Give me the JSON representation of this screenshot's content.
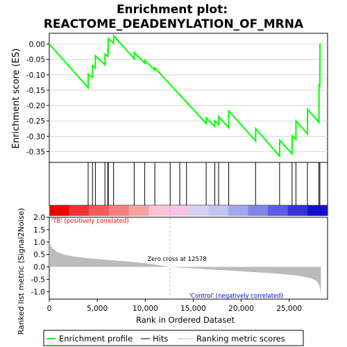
{
  "title_line1": "Enrichment plot:",
  "title_line2": "REACTOME_DEADENYLATION_OF_MRNA",
  "colors": {
    "enrichment_line": "#00ff00",
    "hits": "#000000",
    "metric_fill": "#bbbbbb",
    "pos_label": "#ff0000",
    "neg_label": "#0000cc",
    "zero_cross_line": "#bbbbbb"
  },
  "chart_data": [
    {
      "type": "line",
      "name": "enrichment-profile",
      "ylabel": "Enrichment score (ES)",
      "ylim": [
        -0.385,
        0.035
      ],
      "yticks": [
        0.0,
        -0.05,
        -0.1,
        -0.15,
        -0.2,
        -0.25,
        -0.3,
        -0.35
      ],
      "ytick_labels": [
        "0.00",
        "-0.05",
        "-0.10",
        "-0.15",
        "-0.20",
        "-0.25",
        "-0.30",
        "-0.35"
      ],
      "xlim": [
        0,
        29000
      ],
      "points": [
        [
          0,
          0.0
        ],
        [
          4050,
          -0.142
        ],
        [
          4060,
          -0.098
        ],
        [
          4500,
          -0.108
        ],
        [
          4510,
          -0.07
        ],
        [
          4800,
          -0.078
        ],
        [
          4810,
          -0.038
        ],
        [
          5800,
          -0.068
        ],
        [
          5810,
          -0.033
        ],
        [
          6100,
          -0.04
        ],
        [
          6110,
          -0.02
        ],
        [
          6150,
          -0.022
        ],
        [
          6160,
          0.018
        ],
        [
          6700,
          0.003
        ],
        [
          6710,
          0.027
        ],
        [
          8850,
          -0.048
        ],
        [
          8860,
          -0.028
        ],
        [
          9950,
          -0.062
        ],
        [
          9960,
          -0.053
        ],
        [
          11000,
          -0.085
        ],
        [
          11010,
          -0.078
        ],
        [
          16350,
          -0.258
        ],
        [
          16360,
          -0.24
        ],
        [
          17250,
          -0.268
        ],
        [
          17260,
          -0.25
        ],
        [
          17650,
          -0.262
        ],
        [
          17660,
          -0.236
        ],
        [
          18700,
          -0.272
        ],
        [
          18710,
          -0.218
        ],
        [
          21500,
          -0.315
        ],
        [
          21510,
          -0.275
        ],
        [
          24000,
          -0.365
        ],
        [
          24010,
          -0.313
        ],
        [
          25300,
          -0.357
        ],
        [
          25310,
          -0.298
        ],
        [
          25700,
          -0.31
        ],
        [
          25710,
          -0.25
        ],
        [
          26900,
          -0.292
        ],
        [
          26910,
          -0.212
        ],
        [
          28100,
          -0.255
        ],
        [
          28110,
          -0.133
        ],
        [
          28200,
          -0.136
        ],
        [
          28210,
          0.002
        ]
      ]
    },
    {
      "type": "scatter",
      "name": "hits",
      "x": [
        4050,
        4500,
        4800,
        5800,
        6100,
        6150,
        6700,
        8850,
        9950,
        11000,
        12600,
        13600,
        14300,
        16350,
        17250,
        17650,
        18700,
        21500,
        24000,
        25300,
        25700,
        26900,
        28100,
        28200
      ]
    },
    {
      "type": "area",
      "name": "ranked-list-metric",
      "xlabel": "Rank in Ordered Dataset",
      "ylabel": "Ranked list metric (Signal2Noise)",
      "ylim": [
        -1.3,
        2.0
      ],
      "yticks": [
        2.0,
        1.5,
        1.0,
        0.5,
        0.0,
        -0.5,
        -1.0
      ],
      "ytick_labels": [
        "2.0",
        "1.5",
        "1.0",
        "0.5",
        "0.0",
        "-0.5",
        "-1.0"
      ],
      "xlim": [
        0,
        29000
      ],
      "xticks": [
        0,
        5000,
        10000,
        15000,
        20000,
        25000
      ],
      "xtick_labels": [
        "0",
        "5,000",
        "10,000",
        "15,000",
        "20,000",
        "25,000"
      ],
      "points": [
        [
          0,
          1.1
        ],
        [
          150,
          0.85
        ],
        [
          400,
          0.72
        ],
        [
          800,
          0.6
        ],
        [
          1500,
          0.5
        ],
        [
          2500,
          0.42
        ],
        [
          4000,
          0.35
        ],
        [
          6000,
          0.28
        ],
        [
          8000,
          0.22
        ],
        [
          10000,
          0.15
        ],
        [
          12578,
          0.0
        ],
        [
          15000,
          -0.06
        ],
        [
          18000,
          -0.13
        ],
        [
          21000,
          -0.2
        ],
        [
          24000,
          -0.28
        ],
        [
          26000,
          -0.36
        ],
        [
          27300,
          -0.46
        ],
        [
          27900,
          -0.58
        ],
        [
          28150,
          -0.75
        ],
        [
          28250,
          -0.95
        ],
        [
          28300,
          -1.22
        ]
      ],
      "zero_cross": 12578,
      "zero_cross_label": "Zero cross at 12578",
      "pos_label": "'TB' (positively correlated)",
      "neg_label": "'Control' (negatively correlated)"
    }
  ],
  "heatmap_colors": [
    "#ee0000",
    "#f33333",
    "#f55a5a",
    "#f77d7d",
    "#f9a0a0",
    "#fbc4d4",
    "#f7c4e8",
    "#d8d0f4",
    "#c4c4f4",
    "#a0a8f0",
    "#7d84ec",
    "#5a5ee8",
    "#3333d8",
    "#1111cc"
  ],
  "legend": {
    "items": [
      "Enrichment profile",
      "Hits",
      "Ranking metric scores"
    ]
  }
}
